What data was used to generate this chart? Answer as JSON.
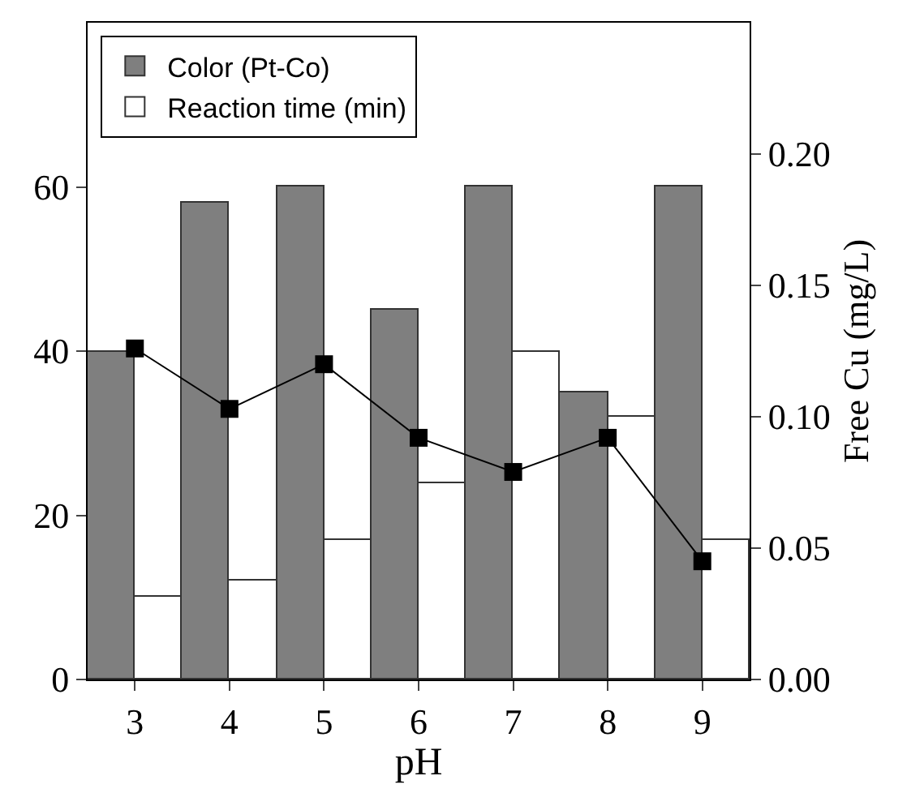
{
  "chart_data": {
    "type": "bar",
    "xlabel": "pH",
    "y2label": "Free Cu (mg/L)",
    "categories": [
      "3",
      "4",
      "5",
      "6",
      "7",
      "8",
      "9"
    ],
    "series": [
      {
        "name": "Color (Pt-Co)",
        "color": "#7f7f7f",
        "values": [
          40,
          58,
          60,
          45,
          60,
          35,
          60
        ]
      },
      {
        "name": "Reaction time (min)",
        "color": "#ffffff",
        "values": [
          10,
          12,
          17,
          24,
          40,
          32,
          17
        ]
      },
      {
        "type": "line",
        "axis": "y2",
        "color": "#000000",
        "marker": "square",
        "values": [
          0.126,
          0.103,
          0.12,
          0.092,
          0.079,
          0.092,
          0.045
        ]
      }
    ],
    "ylim": [
      0,
      80
    ],
    "yticks": [
      0,
      20,
      40,
      60
    ],
    "y2lim": [
      0,
      0.25
    ],
    "y2ticks": [
      {
        "value": 0,
        "label": "0.00"
      },
      {
        "value": 0.05,
        "label": "0.05"
      },
      {
        "value": 0.1,
        "label": "0.10"
      },
      {
        "value": 0.15,
        "label": "0.15"
      },
      {
        "value": 0.2,
        "label": "0.20"
      }
    ],
    "grid": false,
    "legend": "top left"
  }
}
